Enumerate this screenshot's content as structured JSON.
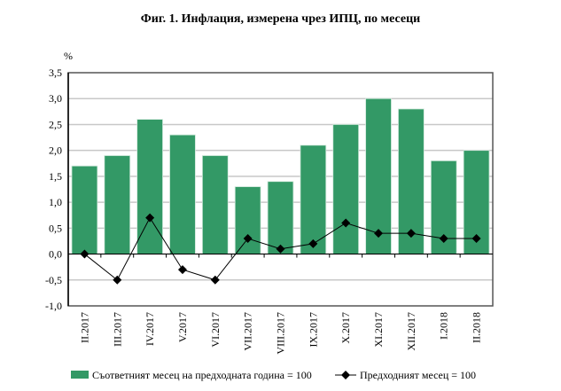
{
  "chart_data": {
    "type": "bar",
    "title": "Фиг. 1. Инфлация, измерена чрез ИПЦ, по месеци",
    "ylabel": "%",
    "ylim": [
      -1.0,
      3.5
    ],
    "yticks": [
      "3,5",
      "3,0",
      "2,5",
      "2,0",
      "1,5",
      "1,0",
      "0,5",
      "0,0",
      "-0,5",
      "-1,0"
    ],
    "categories": [
      "II.2017",
      "III.2017",
      "IV.2017",
      "V.2017",
      "VI.2017",
      "VII.2017",
      "VIII.2017",
      "IX.2017",
      "X.2017",
      "XI.2017",
      "XII.2017",
      "I.2018",
      "II.2018"
    ],
    "series": [
      {
        "name": "Съответният месец на предходната година = 100",
        "type": "bar",
        "color": "#339966",
        "values": [
          1.7,
          1.9,
          2.6,
          2.3,
          1.9,
          1.3,
          1.4,
          2.1,
          2.5,
          3.0,
          2.8,
          1.8,
          2.0
        ]
      },
      {
        "name": "Предходният месец = 100",
        "type": "line",
        "color": "#000000",
        "values": [
          0.0,
          -0.5,
          0.7,
          -0.3,
          -0.5,
          0.3,
          0.1,
          0.2,
          0.6,
          0.4,
          0.4,
          0.3,
          0.3
        ]
      }
    ],
    "grid": true,
    "legend": "bottom"
  }
}
